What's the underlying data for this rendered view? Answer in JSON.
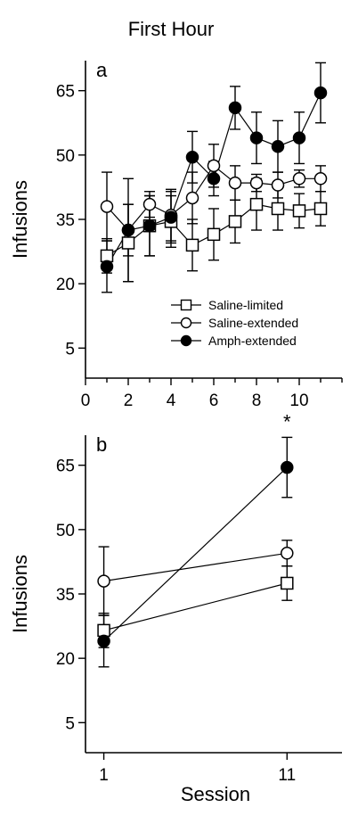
{
  "figure": {
    "title": "First Hour",
    "xlabel": "Session"
  },
  "chart_data": [
    {
      "type": "line",
      "panel_label": "a",
      "ylabel": "Infusions",
      "xlim": [
        0,
        12
      ],
      "ylim": [
        -2,
        72
      ],
      "xticks": [
        0,
        2,
        4,
        6,
        8,
        10
      ],
      "yticks": [
        5,
        20,
        35,
        50,
        65
      ],
      "legend_position": "bottom-right",
      "grid": false,
      "series": [
        {
          "name": "Saline-limited",
          "marker": "open-square",
          "x": [
            1,
            2,
            3,
            4,
            5,
            6,
            7,
            8,
            9,
            10,
            11
          ],
          "y": [
            26.5,
            29.5,
            33.5,
            34.5,
            29,
            31.5,
            34.5,
            38.5,
            37.5,
            37,
            37.5
          ],
          "err": [
            4,
            9,
            7,
            6,
            6,
            6,
            5,
            6,
            5,
            4,
            4
          ]
        },
        {
          "name": "Saline-extended",
          "marker": "open-circle",
          "x": [
            1,
            2,
            3,
            4,
            5,
            6,
            7,
            8,
            9,
            10,
            11
          ],
          "y": [
            38,
            32.5,
            38.5,
            36,
            40,
            47.5,
            43.5,
            43.5,
            43,
            44.5,
            44.5
          ],
          "err": [
            8,
            12,
            3,
            6,
            6,
            5,
            4,
            2,
            3,
            2,
            3
          ]
        },
        {
          "name": "Amph-extended",
          "marker": "filled-circle",
          "x": [
            1,
            2,
            3,
            4,
            5,
            6,
            7,
            8,
            9,
            10,
            11
          ],
          "y": [
            24,
            32.5,
            33.5,
            35.5,
            49.5,
            44.5,
            61,
            54,
            52,
            54,
            64.5
          ],
          "err": [
            6,
            6,
            7,
            6,
            6,
            4,
            5,
            6,
            6,
            6,
            7
          ]
        }
      ]
    },
    {
      "type": "line",
      "panel_label": "b",
      "ylabel": "Infusions",
      "xlim": [
        0,
        14
      ],
      "ylim": [
        -2,
        72
      ],
      "categories": [
        "1",
        "11"
      ],
      "xticks": [
        1,
        11
      ],
      "yticks": [
        5,
        20,
        35,
        50,
        65
      ],
      "grid": false,
      "annotation": "*",
      "series": [
        {
          "name": "Saline-limited",
          "marker": "open-square",
          "x": [
            1,
            11
          ],
          "y": [
            26.5,
            37.5
          ],
          "err": [
            4,
            4
          ]
        },
        {
          "name": "Saline-extended",
          "marker": "open-circle",
          "x": [
            1,
            11
          ],
          "y": [
            38,
            44.5
          ],
          "err": [
            8,
            3
          ]
        },
        {
          "name": "Amph-extended",
          "marker": "filled-circle",
          "x": [
            1,
            11
          ],
          "y": [
            24,
            64.5
          ],
          "err": [
            6,
            7
          ]
        }
      ]
    }
  ]
}
